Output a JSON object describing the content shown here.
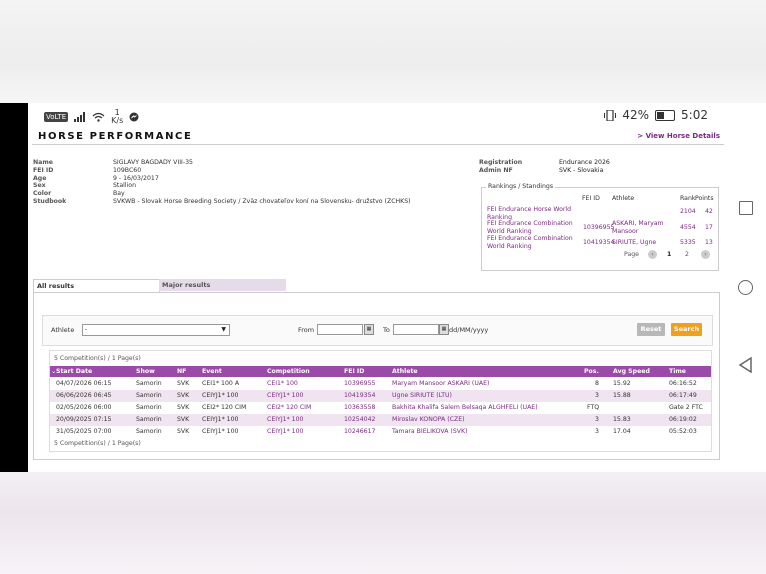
{
  "status_bar": {
    "network_badge": "VoLTE",
    "speed_value": "1",
    "speed_unit": "K/s",
    "battery": "42%",
    "time": "5:02"
  },
  "header": {
    "title": "HORSE PERFORMANCE",
    "view_link": "> View Horse Details"
  },
  "horse": {
    "fields": [
      {
        "label": "Name",
        "value": "SIGLAVY BAGDADY VIII-35"
      },
      {
        "label": "FEI ID",
        "value": "109BC60"
      },
      {
        "label": "Age",
        "value": "9 - 16/03/2017"
      },
      {
        "label": "Sex",
        "value": "Stallion"
      },
      {
        "label": "Color",
        "value": "Bay"
      },
      {
        "label": "Studbook",
        "value": "SVKWB - Slovak Horse Breeding Society / Zväz chovateľov koní na Slovensku- družstvo (ZCHKS)"
      }
    ],
    "registration": [
      {
        "label": "Registration",
        "value": "Endurance 2026"
      },
      {
        "label": "Admin NF",
        "value": "SVK - Slovakia"
      }
    ]
  },
  "rankings": {
    "legend": "Rankings / Standings",
    "headers": {
      "fei_id": "FEI ID",
      "athlete": "Athlete",
      "rank": "Rank",
      "points": "Points"
    },
    "rows": [
      {
        "name_line1": "FEI Endurance Horse World",
        "name_line2": "Ranking",
        "fei_id": "",
        "athlete_line1": "",
        "athlete_line2": "",
        "rank": "2104",
        "points": "42"
      },
      {
        "name_line1": "FEI Endurance Combination",
        "name_line2": "World Ranking",
        "fei_id": "10396955",
        "athlete_line1": "ASKARI, Maryam",
        "athlete_line2": "Mansoor",
        "rank": "4554",
        "points": "17"
      },
      {
        "name_line1": "FEI Endurance Combination",
        "name_line2": "World Ranking",
        "fei_id": "10419354",
        "athlete_line1": "SIRIUTE, Ugne",
        "athlete_line2": "",
        "rank": "5335",
        "points": "13"
      }
    ],
    "page_label": "Page",
    "pages": [
      "1",
      "2"
    ]
  },
  "tabs": [
    "All results",
    "Major results"
  ],
  "filter": {
    "athlete_label": "Athlete",
    "athlete_value": "-",
    "from_label": "From",
    "to_label": "To",
    "date_format": "dd/MM/yyyy",
    "reset_label": "Reset",
    "search_label": "Search"
  },
  "results": {
    "summary_top": "5 Competition(s) / 1 Page(s)",
    "summary_bottom": "5 Competition(s) / 1 Page(s)",
    "columns": [
      "Start Date",
      "Show",
      "NF",
      "Event",
      "Competition",
      "FEI ID",
      "Athlete",
      "Pos.",
      "Avg Speed",
      "Time"
    ],
    "sort_indicator": "⌄",
    "rows": [
      {
        "date": "04/07/2026 06:15",
        "show": "Samorin",
        "nf": "SVK",
        "event": "CEI1* 100 A",
        "competition": "CEI1* 100",
        "fei_id": "10396955",
        "athlete": "Maryam Mansoor ASKARI (UAE)",
        "pos": "8",
        "speed": "15.92",
        "time": "06:16:52"
      },
      {
        "date": "06/06/2026 06:45",
        "show": "Samorin",
        "nf": "SVK",
        "event": "CEIYJ1* 100",
        "competition": "CEIYJ1* 100",
        "fei_id": "10419354",
        "athlete": "Ugne SIRIUTE (LTU)",
        "pos": "3",
        "speed": "15.88",
        "time": "06:17:49"
      },
      {
        "date": "02/05/2026 06:00",
        "show": "Samorin",
        "nf": "SVK",
        "event": "CEI2* 120 CIM",
        "competition": "CEI2* 120 CIM",
        "fei_id": "10363558",
        "athlete": "Bakhita Khalifa Salem Belsaqa ALGHFELI (UAE)",
        "pos": "FTQ",
        "speed": "",
        "time": "Gate 2 FTC"
      },
      {
        "date": "20/09/2025 07:15",
        "show": "Samorin",
        "nf": "SVK",
        "event": "CEIYJ1* 100",
        "competition": "CEIYJ1* 100",
        "fei_id": "10254042",
        "athlete": "Miroslav KONOPA (CZE)",
        "pos": "3",
        "speed": "15.83",
        "time": "06:19:02"
      },
      {
        "date": "31/05/2025 07:00",
        "show": "Samorin",
        "nf": "SVK",
        "event": "CEIYJ1* 100",
        "competition": "CEIYJ1* 100",
        "fei_id": "10246617",
        "athlete": "Tamara BIELIKOVA (SVK)",
        "pos": "3",
        "speed": "17.04",
        "time": "05:52:03"
      }
    ]
  }
}
